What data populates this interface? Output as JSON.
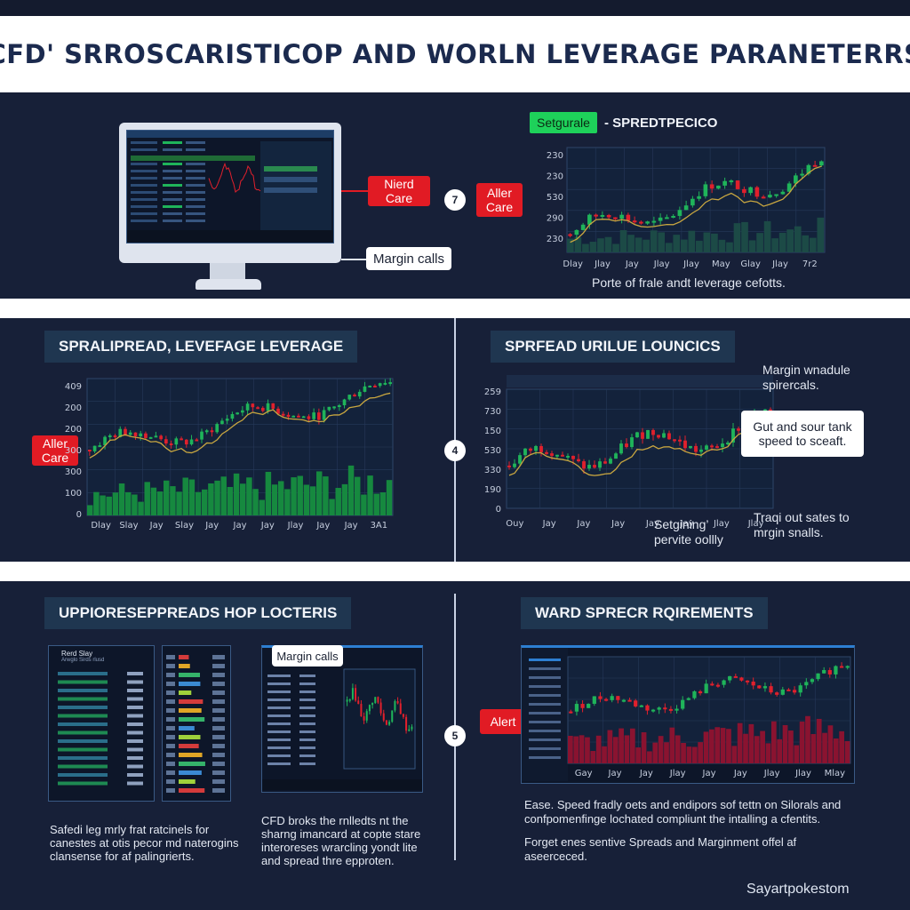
{
  "header": {
    "title": "CFD' SRROSCARISTICOP  AND WORLN LEVERAGE PARANETERRS"
  },
  "top": {
    "callouts": {
      "nierd_care": "Nierd Care",
      "aller_care": "Aller Care",
      "margin_calls": "Margin calls"
    },
    "step": "7",
    "chart_tag": "Setgurale",
    "chart_title": "- SPREDTPECICO",
    "y_ticks": [
      "230",
      "230",
      "530",
      "290",
      "230"
    ],
    "x_ticks": [
      "Dlay",
      "Jlay",
      "Jay",
      "Jlay",
      "Jlay",
      "May",
      "Glay",
      "Jlay",
      "7r2"
    ],
    "caption": "Porte of frale andt leverage cefotts."
  },
  "middle": {
    "left_tag": "SPRALIPREAD, LEVEFAGE LEVERAGE",
    "left_callout": "Aller Care",
    "left_y_ticks": [
      "409",
      "200",
      "200",
      "300",
      "300",
      "100",
      "0"
    ],
    "left_x_ticks": [
      "Dlay",
      "Slay",
      "Jay",
      "Slay",
      "Jay",
      "Jay",
      "Jay",
      "Jlay",
      "Jay",
      "Jay",
      "3A1"
    ],
    "step": "4",
    "right_tag": "SPRFEAD URILUE LOUNCICS",
    "right_y_ticks": [
      "259",
      "730",
      "150",
      "530",
      "330",
      "190",
      "0"
    ],
    "right_x_ticks": [
      "Ouy",
      "Jay",
      "Jay",
      "Jay",
      "Jay",
      "Jay",
      "Jlay",
      "Jlay"
    ],
    "annot_top": "Margin wnadule spirercals.",
    "annot_box": "Gut and sour tank speed to sceaft.",
    "annot_bottom_left": "Setgining’ pervite oollly",
    "annot_bottom_right": "Traqi out sates to mrgin snalls."
  },
  "bottom": {
    "left_tag": "UPPIORESEPPREADS HOP LOCTERIS",
    "margin_calls": "Margin calls",
    "list_header": "Rerd Slay",
    "list_subheader": "Arwglo Sirds rlusd",
    "caption_left": "Safedi leg mrly frat ratcinels for canestes at otis pecor md naterogins clansense for af palingrierts.",
    "caption_mid": "CFD broks the rnlledts nt the sharng imancard at copte stare interoreses wrarcling yondt lite and spread thre epproten.",
    "step": "5",
    "right_tag": "WARD SPRECR RQIREMENTS",
    "alert": "Alert",
    "right_x_ticks": [
      "Gay",
      "Jay",
      "Jay",
      "Jlay",
      "Jay",
      "Jay",
      "Jlay",
      "Jlay",
      "Mlay"
    ],
    "caption_right_1": "Ease. Speed fradly oets and endipors sof tettn on Silorals and confpomenfinge lochated compliunt the intalling a cfentits.",
    "caption_right_2": "Forget enes sentive Spreads and Marginment offel af aseerceced.",
    "footer": "Sayartpokestom"
  },
  "colors": {
    "up": "#1fb45a",
    "down": "#e0202c",
    "trend": "#c8a640",
    "panel": "#172038"
  }
}
